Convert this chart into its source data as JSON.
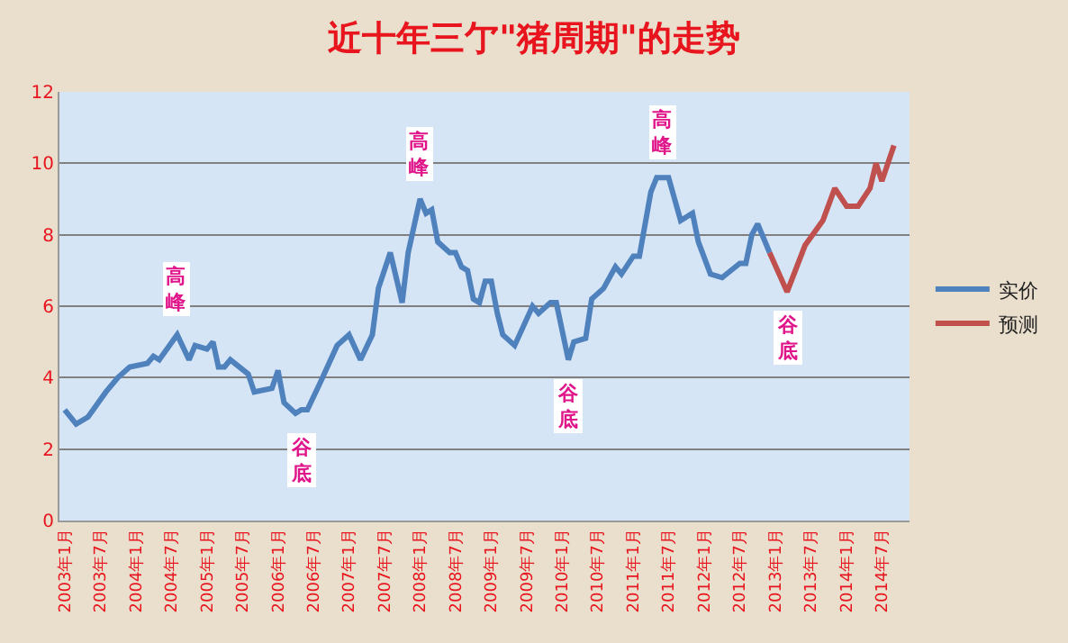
{
  "chart_data": {
    "type": "line",
    "title": "近十年三亇\"猪周期\"的走势",
    "series": [
      {
        "name": "实价",
        "color": "#4f81bd",
        "x": [
          "2003-01",
          "2003-03",
          "2003-05",
          "2003-08",
          "2003-10",
          "2003-12",
          "2004-03",
          "2004-04",
          "2004-05",
          "2004-08",
          "2004-10",
          "2004-11",
          "2005-01",
          "2005-02",
          "2005-03",
          "2005-04",
          "2005-05",
          "2005-08",
          "2005-09",
          "2005-12",
          "2006-01",
          "2006-02",
          "2006-04",
          "2006-05",
          "2006-06",
          "2006-08",
          "2006-11",
          "2007-01",
          "2007-03",
          "2007-05",
          "2007-06",
          "2007-08",
          "2007-10",
          "2007-11",
          "2008-01",
          "2008-02",
          "2008-03",
          "2008-04",
          "2008-06",
          "2008-07",
          "2008-08",
          "2008-09",
          "2008-10",
          "2008-11",
          "2008-12",
          "2009-01",
          "2009-02",
          "2009-03",
          "2009-05",
          "2009-08",
          "2009-09",
          "2009-11",
          "2009-12",
          "2010-02",
          "2010-03",
          "2010-05",
          "2010-06",
          "2010-08",
          "2010-10",
          "2010-11",
          "2011-01",
          "2011-02",
          "2011-04",
          "2011-05",
          "2011-07",
          "2011-09",
          "2011-11",
          "2011-12",
          "2012-02",
          "2012-04",
          "2012-07",
          "2012-08",
          "2012-09",
          "2012-10",
          "2012-12"
        ],
        "values": [
          3.1,
          2.7,
          2.9,
          3.6,
          4.0,
          4.3,
          4.4,
          4.6,
          4.5,
          5.2,
          4.5,
          4.9,
          4.8,
          5.0,
          4.3,
          4.3,
          4.5,
          4.1,
          3.6,
          3.7,
          4.2,
          3.3,
          3.0,
          3.1,
          3.1,
          3.8,
          4.9,
          5.2,
          4.5,
          5.2,
          6.5,
          7.5,
          6.1,
          7.5,
          9.0,
          8.6,
          8.7,
          7.8,
          7.5,
          7.5,
          7.1,
          7.0,
          6.2,
          6.1,
          6.7,
          6.7,
          5.8,
          5.2,
          4.9,
          6.0,
          5.8,
          6.1,
          6.1,
          4.5,
          5.0,
          5.1,
          6.2,
          6.5,
          7.1,
          6.9,
          7.4,
          7.4,
          9.2,
          9.6,
          9.6,
          8.4,
          8.6,
          7.8,
          6.9,
          6.8,
          7.2,
          7.2,
          8.0,
          8.3,
          7.5
        ]
      },
      {
        "name": "预测",
        "color": "#c0504d",
        "x": [
          "2012-12",
          "2013-03",
          "2013-06",
          "2013-09",
          "2013-11",
          "2014-01",
          "2014-03",
          "2014-05",
          "2014-06",
          "2014-07",
          "2014-09"
        ],
        "values": [
          7.5,
          6.4,
          7.7,
          8.4,
          9.3,
          8.8,
          8.8,
          9.3,
          10.0,
          9.5,
          10.5
        ]
      }
    ],
    "annotations": [
      {
        "text": "高峰",
        "x": "2004-08",
        "y": 5.2
      },
      {
        "text": "谷底",
        "x": "2006-05",
        "y": 3.0
      },
      {
        "text": "高峰",
        "x": "2008-01",
        "y": 9.0
      },
      {
        "text": "谷底",
        "x": "2010-02",
        "y": 4.5
      },
      {
        "text": "高峰",
        "x": "2011-06",
        "y": 9.6
      },
      {
        "text": "谷底",
        "x": "2013-03",
        "y": 6.4
      }
    ],
    "xlim": [
      "2002-12-05",
      "2014-11-20"
    ],
    "xticks": [
      {
        "value": "2003-01",
        "label": "2003年1月"
      },
      {
        "value": "2003-07",
        "label": "2003年7月"
      },
      {
        "value": "2004-01",
        "label": "2004年1月"
      },
      {
        "value": "2004-07",
        "label": "2004年7月"
      },
      {
        "value": "2005-01",
        "label": "2005年1月"
      },
      {
        "value": "2005-07",
        "label": "2005年7月"
      },
      {
        "value": "2006-01",
        "label": "2006年1月"
      },
      {
        "value": "2006-07",
        "label": "2006年7月"
      },
      {
        "value": "2007-01",
        "label": "2007年1月"
      },
      {
        "value": "2007-07",
        "label": "2007年7月"
      },
      {
        "value": "2008-01",
        "label": "2008年1月"
      },
      {
        "value": "2008-07",
        "label": "2008年7月"
      },
      {
        "value": "2009-01",
        "label": "2009年1月"
      },
      {
        "value": "2009-07",
        "label": "2009年7月"
      },
      {
        "value": "2010-01",
        "label": "2010年1月"
      },
      {
        "value": "2010-07",
        "label": "2010年7月"
      },
      {
        "value": "2011-01",
        "label": "2011年1月"
      },
      {
        "value": "2011-07",
        "label": "2011年7月"
      },
      {
        "value": "2012-01",
        "label": "2012年1月"
      },
      {
        "value": "2012-07",
        "label": "2012年7月"
      },
      {
        "value": "2013-01",
        "label": "2013年1月"
      },
      {
        "value": "2013-07",
        "label": "2013年7月"
      },
      {
        "value": "2014-01",
        "label": "2014年1月"
      },
      {
        "value": "2014-07",
        "label": "2014年7月"
      }
    ],
    "ylim": [
      0,
      12
    ],
    "yticks": [
      0,
      2,
      4,
      6,
      8,
      10,
      12
    ],
    "grid": "y",
    "legend": "right",
    "marker": "none",
    "line_style": "solid"
  }
}
